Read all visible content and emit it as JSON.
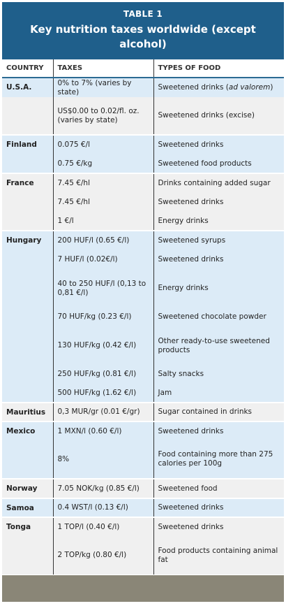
{
  "table": {
    "label": "TABLE 1",
    "title": "Key nutrition taxes worldwide (except alcohol)",
    "columns": [
      "COUNTRY",
      "TAXES",
      "TYPES OF FOOD"
    ],
    "rows": [
      {
        "country": "U.S.A.",
        "tax": "0% to 7% (varies by state)",
        "food_pre": "Sweetened drinks (",
        "food_em": "ad valorem",
        "food_post": ")"
      },
      {
        "country": "",
        "tax": "US$0.00 to 0.02/fl. oz. (varies by state)",
        "food": "Sweetened drinks (excise)"
      },
      {
        "country": "Finland",
        "tax": "0.075 €/l",
        "food": "Sweetened drinks"
      },
      {
        "country": "",
        "tax": "0.75 €/kg",
        "food": "Sweetened food products"
      },
      {
        "country": "France",
        "tax": "7.45 €/hl",
        "food": "Drinks containing added sugar"
      },
      {
        "country": "",
        "tax": "7.45 €/hl",
        "food": "Sweetened drinks"
      },
      {
        "country": "",
        "tax": "1 €/l",
        "food": "Energy drinks"
      },
      {
        "country": "Hungary",
        "tax": "200 HUF/l (0.65 €/l)",
        "food": "Sweetened syrups"
      },
      {
        "country": "",
        "tax": "7 HUF/l (0.02€/l)",
        "food": "Sweetened drinks"
      },
      {
        "country": "",
        "tax": "40 to 250 HUF/l (0,13 to 0,81 €/l)",
        "food": "Energy drinks"
      },
      {
        "country": "",
        "tax": "70 HUF/kg (0.23 €/l)",
        "food": "Sweetened chocolate powder"
      },
      {
        "country": "",
        "tax": "130 HUF/kg (0.42 €/l)",
        "food": "Other ready-to-use sweetened products"
      },
      {
        "country": "",
        "tax": "250 HUF/kg (0.81 €/l)",
        "food": "Salty snacks"
      },
      {
        "country": "",
        "tax": "500 HUF/kg (1.62 €/l)",
        "food": "Jam"
      },
      {
        "country": "Mauritius",
        "tax": "0,3 MUR/gr (0.01 €/gr)",
        "food": "Sugar contained in drinks"
      },
      {
        "country": "Mexico",
        "tax": "1 MXN/l (0.60 €/l)",
        "food": "Sweetened drinks"
      },
      {
        "country": "",
        "tax": "8%",
        "food": "Food containing more than 275 calories per 100g"
      },
      {
        "country": "Norway",
        "tax": "7.05 NOK/kg (0.85 €/l)",
        "food": "Sweetened food"
      },
      {
        "country": "Samoa",
        "tax": "0.4 WST/l (0.13 €/l)",
        "food": "Sweetened drinks"
      },
      {
        "country": "Tonga",
        "tax": "1 TOP/l (0.40 €/l)",
        "food": "Sweetened drinks"
      },
      {
        "country": "",
        "tax": "2 TOP/kg (0.80 €/l)",
        "food": "Food products containing animal fat"
      }
    ]
  }
}
